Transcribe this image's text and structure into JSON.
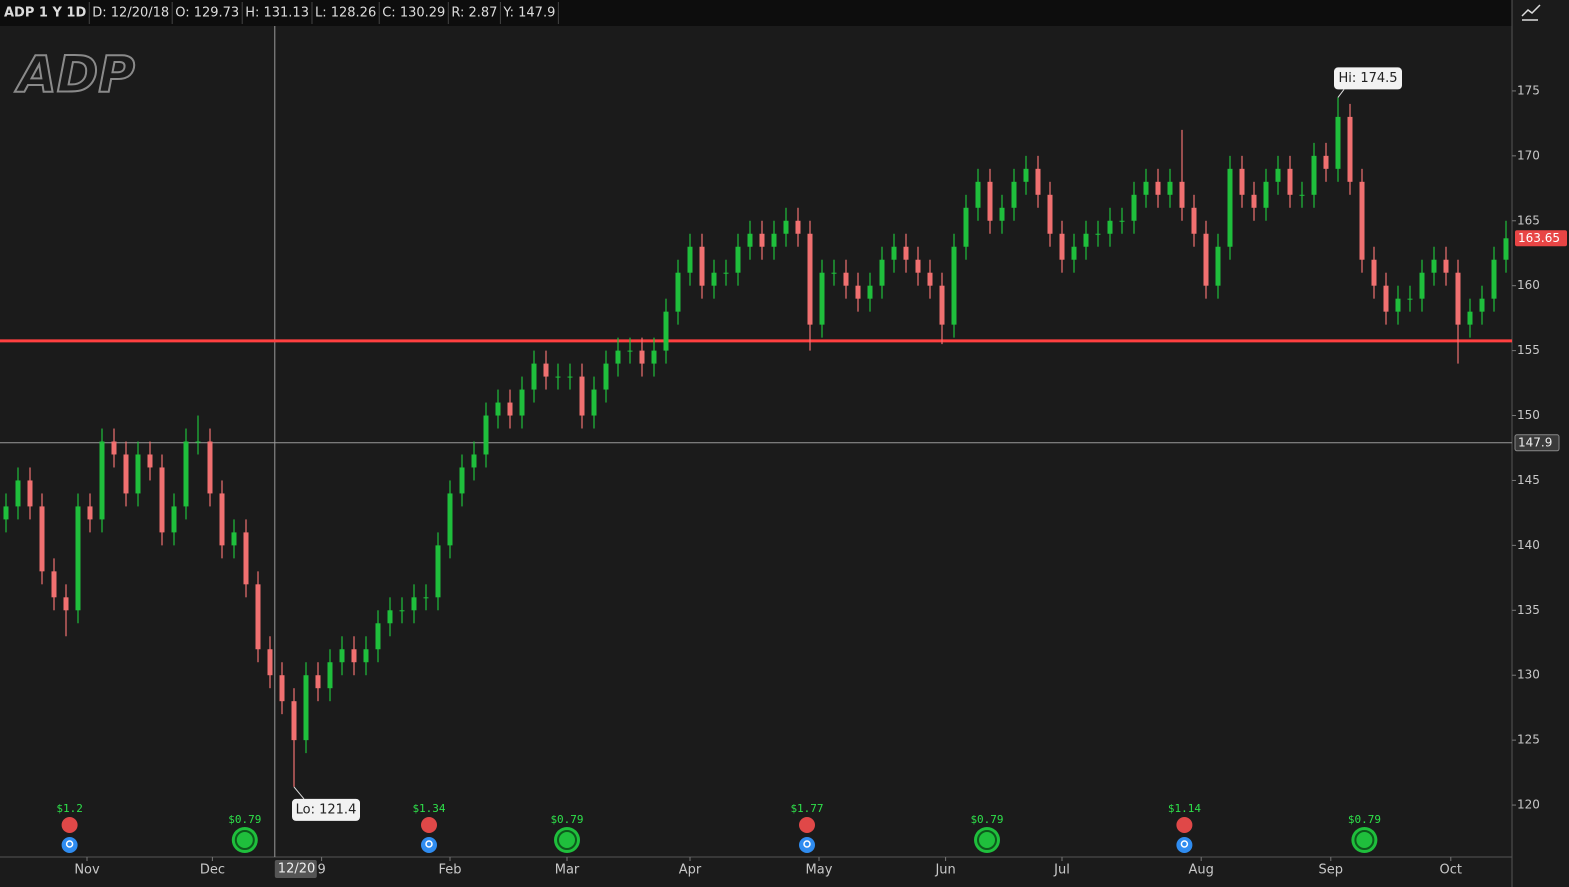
{
  "chart_data": {
    "type": "candlestick",
    "header": [
      "ADP 1 Y 1D",
      "D: 12/20/18",
      "O: 129.73",
      "H: 131.13",
      "L: 128.26",
      "C: 130.29",
      "R: 2.87",
      "Y: 147.9"
    ],
    "logo": "ADP",
    "up_color": "#1fbf3c",
    "down_color": "#f07070",
    "open": [
      142,
      143,
      145,
      143,
      138,
      136,
      135,
      143,
      142,
      148,
      147,
      144,
      147,
      146,
      141,
      143,
      148,
      148,
      144,
      140,
      141,
      137,
      132,
      130,
      128,
      125,
      130,
      129,
      131,
      132,
      131,
      132,
      134,
      135,
      135,
      136,
      136,
      140,
      144,
      146,
      147,
      150,
      151,
      150,
      152,
      154,
      153,
      153,
      153,
      150,
      152,
      154,
      155,
      155,
      154,
      155,
      158,
      161,
      163,
      160,
      161,
      161,
      163,
      164,
      163,
      164,
      165,
      164,
      157,
      161,
      161,
      160,
      159,
      160,
      162,
      163,
      162,
      161,
      160,
      157,
      163,
      166,
      168,
      165,
      166,
      168,
      169,
      167,
      164,
      162,
      163,
      164,
      164,
      165,
      165,
      167,
      168,
      167,
      168,
      166,
      164,
      160,
      163,
      169,
      167,
      166,
      168,
      169,
      167,
      167,
      170,
      169,
      173,
      168,
      162,
      160,
      158,
      159,
      159,
      161,
      162,
      161,
      157,
      158,
      159,
      162
    ],
    "high": [
      144,
      146,
      146,
      144,
      139,
      137,
      144,
      144,
      149,
      149,
      148,
      148,
      148,
      147,
      144,
      149,
      150,
      149,
      145,
      142,
      142,
      138,
      133,
      131,
      129,
      131,
      131,
      132,
      133,
      133,
      133,
      135,
      136,
      136,
      137,
      137,
      141,
      145,
      147,
      148,
      151,
      152,
      152,
      153,
      155,
      155,
      154,
      154,
      154,
      153,
      155,
      156,
      156,
      156,
      156,
      159,
      162,
      164,
      164,
      162,
      162,
      164,
      165,
      165,
      165,
      166,
      166,
      165,
      162,
      162,
      162,
      161,
      161,
      163,
      164,
      164,
      163,
      162,
      161,
      164,
      167,
      169,
      169,
      167,
      169,
      170,
      170,
      168,
      165,
      164,
      165,
      165,
      166,
      166,
      168,
      169,
      169,
      169,
      172,
      167,
      165,
      164,
      170,
      170,
      168,
      169,
      170,
      170,
      168,
      171,
      171,
      174.5,
      174,
      169,
      163,
      161,
      160,
      160,
      162,
      163,
      163,
      162,
      159,
      160,
      163,
      165
    ],
    "low": [
      141,
      142,
      142,
      137,
      135,
      133,
      134,
      141,
      141,
      146,
      143,
      143,
      145,
      140,
      140,
      142,
      147,
      143,
      139,
      139,
      136,
      131,
      129,
      127,
      121.4,
      124,
      128,
      128,
      130,
      130,
      130,
      131,
      133,
      134,
      134,
      135,
      135,
      139,
      143,
      145,
      146,
      149,
      149,
      149,
      151,
      152,
      152,
      152,
      149,
      149,
      151,
      153,
      154,
      153,
      153,
      154,
      157,
      160,
      159,
      159,
      160,
      160,
      162,
      162,
      162,
      163,
      163,
      155,
      156,
      160,
      159,
      158,
      158,
      159,
      161,
      161,
      160,
      159,
      155.5,
      156,
      162,
      165,
      164,
      164,
      165,
      167,
      166,
      163,
      161,
      161,
      162,
      163,
      163,
      164,
      164,
      166,
      166,
      166,
      165,
      163,
      159,
      159,
      162,
      166,
      165,
      165,
      167,
      166,
      166,
      166,
      168,
      168,
      167,
      161,
      159,
      157,
      157,
      158,
      158,
      160,
      160,
      154,
      156,
      157,
      158,
      161
    ],
    "close": [
      143,
      145,
      143,
      138,
      136,
      135,
      143,
      142,
      148,
      147,
      144,
      147,
      146,
      141,
      143,
      148,
      148,
      144,
      140,
      141,
      137,
      132,
      130,
      128,
      125,
      130,
      129,
      131,
      132,
      131,
      132,
      134,
      135,
      135,
      136,
      136,
      140,
      144,
      146,
      147,
      150,
      151,
      150,
      152,
      154,
      153,
      153,
      153,
      150,
      152,
      154,
      155,
      155,
      154,
      155,
      158,
      161,
      163,
      160,
      161,
      161,
      163,
      164,
      163,
      164,
      165,
      164,
      157,
      161,
      161,
      160,
      159,
      160,
      162,
      163,
      162,
      161,
      160,
      157,
      163,
      166,
      168,
      165,
      166,
      168,
      169,
      167,
      164,
      162,
      163,
      164,
      164,
      165,
      165,
      167,
      168,
      167,
      168,
      166,
      164,
      160,
      163,
      169,
      167,
      166,
      168,
      169,
      167,
      167,
      170,
      169,
      173,
      168,
      162,
      160,
      158,
      159,
      159,
      161,
      162,
      161,
      157,
      158,
      159,
      162,
      163.65
    ],
    "ylim": [
      116,
      180
    ],
    "yticks": [
      120,
      125,
      130,
      135,
      140,
      145,
      150,
      155,
      160,
      165,
      170,
      175
    ],
    "xticks": [
      {
        "value": 6.75,
        "label": "Nov"
      },
      {
        "value": 17.2,
        "label": "Dec"
      },
      {
        "value": 26.3,
        "label": "9"
      },
      {
        "value": 37,
        "label": "Feb"
      },
      {
        "value": 46.75,
        "label": "Mar"
      },
      {
        "value": 57,
        "label": "Apr"
      },
      {
        "value": 67.75,
        "label": "May"
      },
      {
        "value": 78.3,
        "label": "Jun"
      },
      {
        "value": 88,
        "label": "Jul"
      },
      {
        "value": 99.6,
        "label": "Aug"
      },
      {
        "value": 110.4,
        "label": "Sep"
      },
      {
        "value": 120.4,
        "label": "Oct"
      }
    ],
    "hi_label": "Hi: 174.5",
    "lo_label": "Lo: 121.4",
    "level": {
      "value": 155.75,
      "color": "#ff4040"
    },
    "crosshair": {
      "x": {
        "value": 22.4,
        "label": "12/20"
      },
      "y": 147.9
    },
    "events": [
      {
        "kind": "earnings",
        "label": "$1.2",
        "at": 5.3
      },
      {
        "kind": "dividend",
        "label": "$0.79",
        "at": 19.9
      },
      {
        "kind": "earnings",
        "label": "$1.34",
        "at": 35.25
      },
      {
        "kind": "dividend",
        "label": "$0.79",
        "at": 46.75
      },
      {
        "kind": "earnings",
        "label": "$1.77",
        "at": 66.75
      },
      {
        "kind": "dividend",
        "label": "$0.79",
        "at": 81.75
      },
      {
        "kind": "earnings",
        "label": "$1.14",
        "at": 98.2
      },
      {
        "kind": "dividend",
        "label": "$0.79",
        "at": 113.2
      }
    ]
  }
}
